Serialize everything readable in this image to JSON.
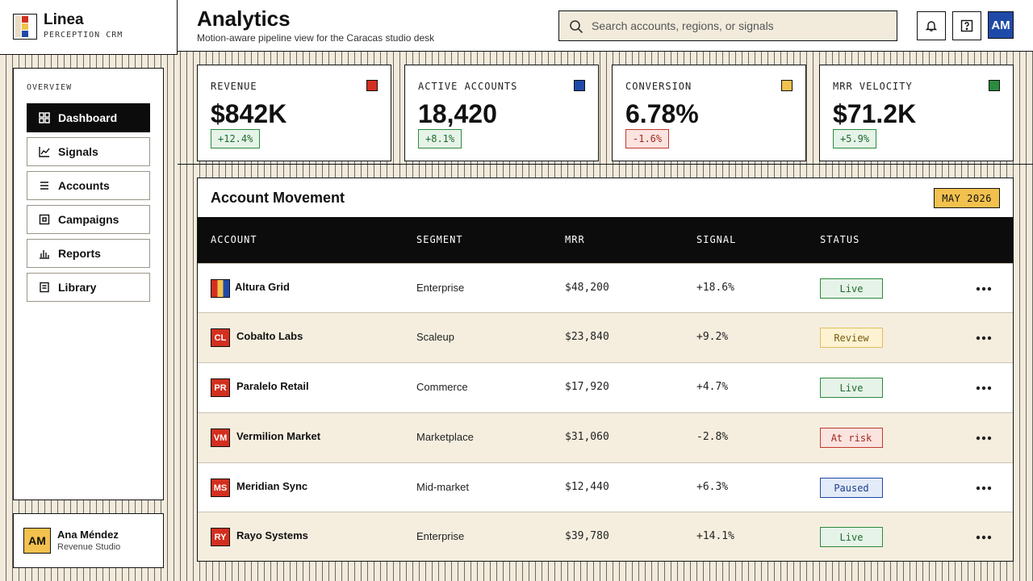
{
  "brand": {
    "name": "Linea",
    "subtitle": "PERCEPTION CRM"
  },
  "sidebar": {
    "heading": "OVERVIEW",
    "items": [
      {
        "label": "Dashboard",
        "icon": "grid-icon",
        "active": true
      },
      {
        "label": "Signals",
        "icon": "line-chart-icon"
      },
      {
        "label": "Accounts",
        "icon": "list-icon"
      },
      {
        "label": "Campaigns",
        "icon": "target-icon"
      },
      {
        "label": "Reports",
        "icon": "bar-chart-icon"
      },
      {
        "label": "Library",
        "icon": "book-icon"
      }
    ]
  },
  "user": {
    "initials": "AM",
    "name": "Ana Méndez",
    "role": "Revenue Studio"
  },
  "header": {
    "title": "Analytics",
    "subtitle": "Motion-aware pipeline view for the Caracas studio desk",
    "search_placeholder": "Search accounts, regions, or signals",
    "avatar_initials": "AM"
  },
  "kpis": [
    {
      "label": "REVENUE",
      "value": "$842K",
      "delta": "+12.4%",
      "trend": "up",
      "color": "#d32f1f"
    },
    {
      "label": "ACTIVE ACCOUNTS",
      "value": "18,420",
      "delta": "+8.1%",
      "trend": "up",
      "color": "#1f4aa8"
    },
    {
      "label": "CONVERSION",
      "value": "6.78%",
      "delta": "-1.6%",
      "trend": "down",
      "color": "#f2c14e"
    },
    {
      "label": "MRR VELOCITY",
      "value": "$71.2K",
      "delta": "+5.9%",
      "trend": "up",
      "color": "#2b8a3e"
    }
  ],
  "table": {
    "title": "Account Movement",
    "period": "MAY 2026",
    "columns": [
      "ACCOUNT",
      "SEGMENT",
      "MRR",
      "SIGNAL",
      "STATUS"
    ],
    "rows": [
      {
        "initials": "",
        "name": "Altura Grid",
        "segment": "Enterprise",
        "mrr": "$48,200",
        "signal": "+18.6%",
        "status": "Live",
        "status_kind": "live"
      },
      {
        "initials": "CL",
        "name": "Cobalto Labs",
        "segment": "Scaleup",
        "mrr": "$23,840",
        "signal": "+9.2%",
        "status": "Review",
        "status_kind": "review"
      },
      {
        "initials": "PR",
        "name": "Paralelo Retail",
        "segment": "Commerce",
        "mrr": "$17,920",
        "signal": "+4.7%",
        "status": "Live",
        "status_kind": "live"
      },
      {
        "initials": "VM",
        "name": "Vermilion Market",
        "segment": "Marketplace",
        "mrr": "$31,060",
        "signal": "-2.8%",
        "status": "At risk",
        "status_kind": "risk"
      },
      {
        "initials": "MS",
        "name": "Meridian Sync",
        "segment": "Mid-market",
        "mrr": "$12,440",
        "signal": "+6.3%",
        "status": "Paused",
        "status_kind": "paused"
      },
      {
        "initials": "RY",
        "name": "Rayo Systems",
        "segment": "Enterprise",
        "mrr": "$39,780",
        "signal": "+14.1%",
        "status": "Live",
        "status_kind": "live"
      }
    ]
  }
}
